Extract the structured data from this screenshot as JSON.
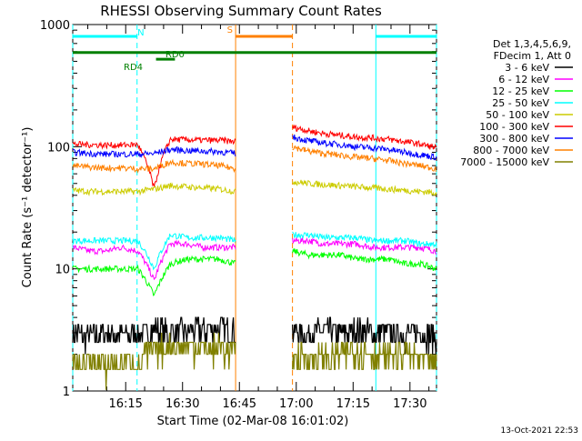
{
  "chart_data": {
    "type": "line",
    "title": "RHESSI Observing Summary Count Rates",
    "xlabel": "Start Time (02-Mar-08 16:01:02)",
    "ylabel": "Count Rate (s⁻¹ detector⁻¹)",
    "yscale": "log",
    "ylim": [
      1,
      1000
    ],
    "xlim": [
      "16:01:02",
      "17:37:00"
    ],
    "x_tick_labels": [
      "16:15",
      "16:30",
      "16:45",
      "17:00",
      "17:15",
      "17:30"
    ],
    "y_tick_labels": [
      "1",
      "10",
      "100",
      "1000"
    ],
    "grid": false,
    "legend_position": "right",
    "legend_header": [
      "Det 1,3,4,5,6,9,",
      "FDecim 1, Att 0"
    ],
    "footer_date": "13-Oct-2021 22:53",
    "gaps": [
      [
        "16:44:00",
        "16:59:00"
      ]
    ],
    "flags": [
      {
        "label": "N",
        "color": "#00ffff",
        "segments": [
          [
            "16:01:02",
            "16:18:00"
          ],
          [
            "17:21:00",
            "17:37:00"
          ]
        ],
        "level": 800
      },
      {
        "label": "S",
        "color": "#ff8000",
        "segments": [
          [
            "16:44:00",
            "16:59:00"
          ]
        ],
        "level": 800
      },
      {
        "label": "RD0",
        "color": "#008000",
        "segments": [
          [
            "16:23:00",
            "16:28:00"
          ]
        ],
        "level": 520
      },
      {
        "label": "RD4",
        "color": "#008000",
        "segments": [
          [
            "16:01:02",
            "17:37:00"
          ]
        ],
        "level": 590
      }
    ],
    "vertical_lines": [
      {
        "time": "16:01:02",
        "color": "#00ffff",
        "style": "dashed"
      },
      {
        "time": "16:18:00",
        "color": "#00ffff",
        "style": "dashed"
      },
      {
        "time": "17:21:00",
        "color": "#00ffff",
        "style": "solid"
      },
      {
        "time": "17:37:00",
        "color": "#00ffff",
        "style": "dashed"
      },
      {
        "time": "16:44:00",
        "color": "#ff8000",
        "style": "solid"
      },
      {
        "time": "16:59:00",
        "color": "#ff8000",
        "style": "dashed"
      }
    ],
    "series": [
      {
        "name": "3 - 6 keV",
        "color": "#000000",
        "segments": [
          {
            "t0": "16:01:02",
            "t1": "16:44:00",
            "values": [
              3.0,
              2.8,
              3.0,
              2.9,
              3.0,
              3.2,
              3.0,
              3.1,
              3.2,
              3.3,
              3.2
            ]
          },
          {
            "t0": "16:59:00",
            "t1": "17:37:00",
            "values": [
              3.0,
              3.0,
              3.1,
              3.0,
              3.2,
              3.0,
              3.1,
              2.9,
              3.0,
              2.8
            ]
          }
        ]
      },
      {
        "name": "6 - 12 keV",
        "color": "#ff00ff",
        "segments": [
          {
            "t0": "16:01:02",
            "t1": "16:44:00",
            "values": [
              15,
              14,
              14,
              15,
              14,
              8,
              16,
              16,
              15,
              15,
              15
            ]
          },
          {
            "t0": "16:59:00",
            "t1": "17:37:00",
            "values": [
              17,
              17,
              16,
              16,
              16,
              15,
              15,
              15,
              15,
              14
            ]
          }
        ]
      },
      {
        "name": "12 - 25 keV",
        "color": "#00ff00",
        "segments": [
          {
            "t0": "16:01:02",
            "t1": "16:44:00",
            "values": [
              10,
              10,
              10,
              10,
              10,
              6,
              11,
              12,
              12,
              12,
              11
            ]
          },
          {
            "t0": "16:59:00",
            "t1": "17:37:00",
            "values": [
              14,
              13,
              13,
              13,
              12,
              12,
              12,
              11,
              11,
              10
            ]
          }
        ]
      },
      {
        "name": "25 - 50 keV",
        "color": "#00ffff",
        "segments": [
          {
            "t0": "16:01:02",
            "t1": "16:44:00",
            "values": [
              17,
              17,
              17,
              17,
              17,
              10,
              19,
              18,
              18,
              18,
              17
            ]
          },
          {
            "t0": "16:59:00",
            "t1": "17:37:00",
            "values": [
              19,
              19,
              18,
              18,
              18,
              17,
              17,
              17,
              16,
              16
            ]
          }
        ]
      },
      {
        "name": "50 - 100 keV",
        "color": "#cccc00",
        "segments": [
          {
            "t0": "16:01:02",
            "t1": "16:44:00",
            "values": [
              44,
              43,
              43,
              43,
              43,
              45,
              48,
              47,
              46,
              45,
              43
            ]
          },
          {
            "t0": "16:59:00",
            "t1": "17:37:00",
            "values": [
              52,
              50,
              49,
              48,
              47,
              46,
              45,
              44,
              43,
              42
            ]
          }
        ]
      },
      {
        "name": "100 - 300 keV",
        "color": "#ff0000",
        "segments": [
          {
            "t0": "16:01:02",
            "t1": "16:44:00",
            "values": [
              105,
              104,
              103,
              103,
              104,
              45,
              115,
              114,
              113,
              113,
              110
            ]
          },
          {
            "t0": "16:59:00",
            "t1": "17:37:00",
            "values": [
              145,
              135,
              128,
              124,
              120,
              118,
              115,
              110,
              105,
              98
            ]
          }
        ]
      },
      {
        "name": "300 - 800 keV",
        "color": "#0000ff",
        "segments": [
          {
            "t0": "16:01:02",
            "t1": "16:44:00",
            "values": [
              90,
              88,
              87,
              87,
              87,
              88,
              95,
              93,
              92,
              91,
              88
            ]
          },
          {
            "t0": "16:59:00",
            "t1": "17:37:00",
            "values": [
              120,
              112,
              107,
              104,
              100,
              98,
              95,
              90,
              86,
              82
            ]
          }
        ]
      },
      {
        "name": "800 - 7000 keV",
        "color": "#ff8000",
        "segments": [
          {
            "t0": "16:01:02",
            "t1": "16:44:00",
            "values": [
              70,
              68,
              67,
              67,
              66,
              66,
              75,
              73,
              72,
              70,
              66
            ]
          },
          {
            "t0": "16:59:00",
            "t1": "17:37:00",
            "values": [
              100,
              92,
              88,
              85,
              82,
              80,
              77,
              73,
              70,
              66
            ]
          }
        ]
      },
      {
        "name": "7000 - 15000 keV",
        "color": "#808000",
        "segments": [
          {
            "t0": "16:01:02",
            "t1": "16:44:00",
            "values": [
              1.6,
              1.7,
              1.6,
              1.8,
              1.7,
              2.2,
              2.3,
              2.4,
              2.2,
              2.3,
              2.0
            ]
          },
          {
            "t0": "16:59:00",
            "t1": "17:37:00",
            "values": [
              2.0,
              1.8,
              1.9,
              2.0,
              2.2,
              2.0,
              1.9,
              2.1,
              1.8,
              1.7
            ]
          }
        ]
      }
    ]
  }
}
